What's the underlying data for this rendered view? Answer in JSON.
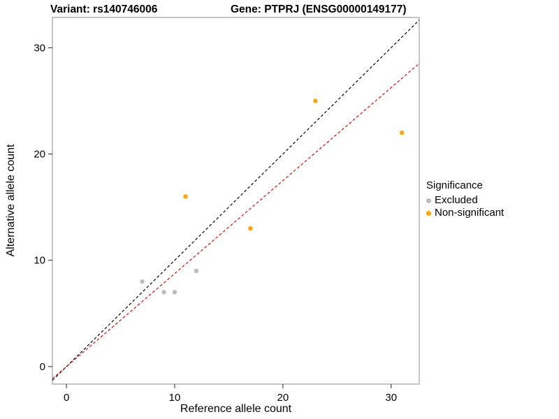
{
  "titles": {
    "left": "Variant: rs140746006",
    "right": "Gene: PTPRJ (ENSG00000149177)"
  },
  "axes": {
    "x_label": "Reference allele count",
    "y_label": "Alternative allele count"
  },
  "legend": {
    "title": "Significance",
    "items": [
      {
        "label": "Excluded",
        "color": "#bcbcbc"
      },
      {
        "label": "Non-significant",
        "color": "#ffa500"
      }
    ]
  },
  "chart_data": {
    "type": "scatter",
    "title_left": "Variant: rs140746006",
    "title_right": "Gene: PTPRJ (ENSG00000149177)",
    "xlabel": "Reference allele count",
    "ylabel": "Alternative allele count",
    "xlim": [
      -1.3,
      32.6
    ],
    "ylim": [
      -1.65,
      32.85
    ],
    "x_ticks": [
      0,
      10,
      20,
      30
    ],
    "y_ticks": [
      0,
      10,
      20,
      30
    ],
    "grid": false,
    "legend_position": "right",
    "series": [
      {
        "name": "Excluded",
        "color": "#bcbcbc",
        "points": [
          [
            7,
            8
          ],
          [
            9,
            7
          ],
          [
            10,
            7
          ],
          [
            12,
            9
          ]
        ]
      },
      {
        "name": "Non-significant",
        "color": "#ffa500",
        "points": [
          [
            11,
            16
          ],
          [
            17,
            13
          ],
          [
            23,
            25
          ],
          [
            31,
            22
          ]
        ]
      }
    ],
    "lines": [
      {
        "name": "identity",
        "slope": 1,
        "intercept": 0,
        "color": "#000000",
        "dash": "4,3"
      },
      {
        "name": "fit",
        "slope": 0.875,
        "intercept": 0,
        "color": "#ff0000",
        "dash": "4,3"
      }
    ]
  }
}
